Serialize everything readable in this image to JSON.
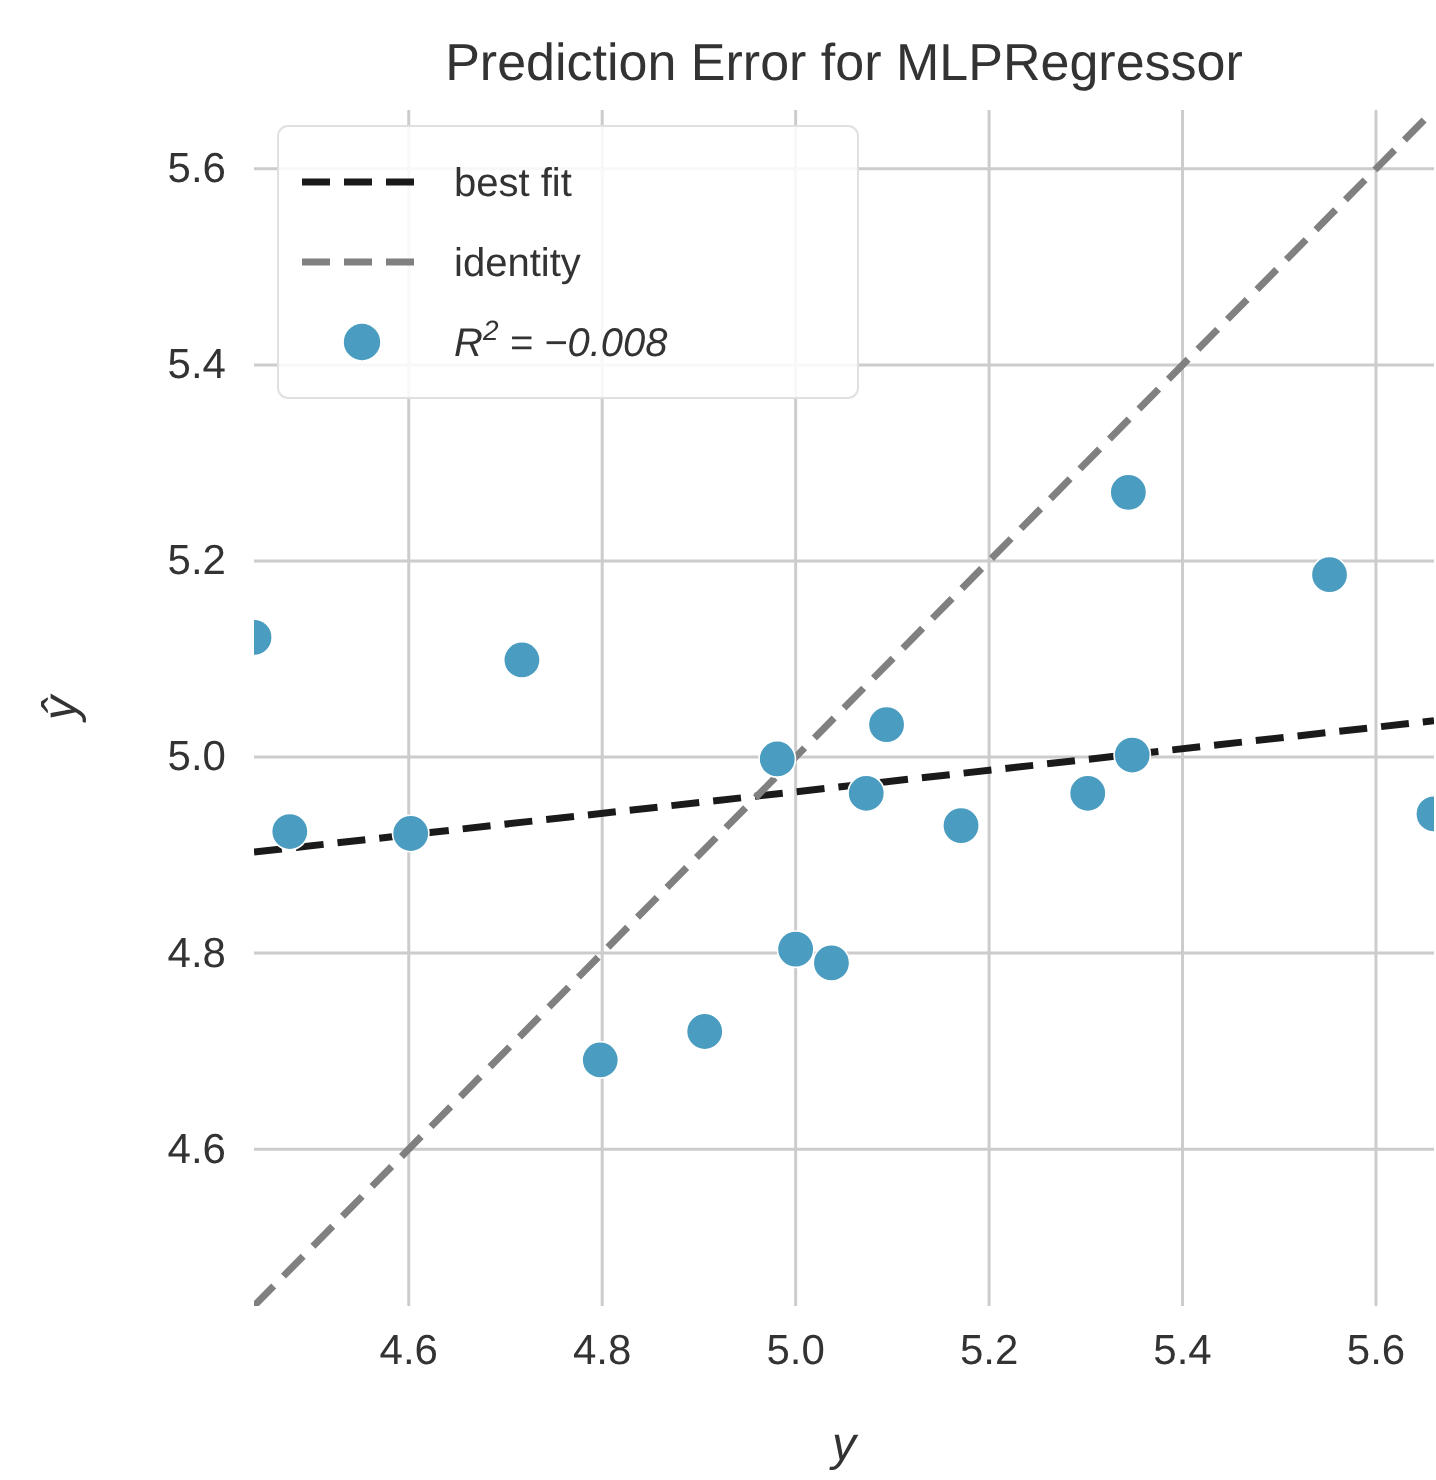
{
  "chart_data": {
    "type": "scatter",
    "title": "Prediction Error for MLPRegressor",
    "xlabel": "y",
    "ylabel": "ŷ",
    "xlim": [
      4.44,
      5.66
    ],
    "ylim": [
      4.44,
      5.66
    ],
    "xticks": [
      4.6,
      4.8,
      {
        "value": 5,
        "label": "5.0"
      },
      5.2,
      5.4,
      5.6
    ],
    "yticks": [
      4.6,
      4.8,
      {
        "value": 5,
        "label": "5.0"
      },
      5.2,
      5.4,
      5.6
    ],
    "grid": true,
    "legend": "top left",
    "series": [
      {
        "name": "best fit",
        "type": "line",
        "color": "#1a1a1a",
        "line_style": "dashed",
        "x": [
          4.44,
          5.66
        ],
        "values": [
          4.903,
          5.037
        ]
      },
      {
        "name": "identity",
        "type": "line",
        "color": "#808080",
        "line_style": "dashed",
        "x": [
          4.44,
          5.66
        ],
        "values": [
          4.44,
          5.66
        ]
      },
      {
        "name": "R$^{2}$ = −0.008",
        "marker": "circle",
        "color": "#4a9cc0",
        "x": [
          4.44,
          4.477,
          4.602,
          4.717,
          4.798,
          4.906,
          4.981,
          5.0,
          5.037,
          5.094,
          5.073,
          5.171,
          5.302,
          5.344,
          5.348,
          5.552,
          5.66
        ],
        "values": [
          5.122,
          4.924,
          4.922,
          5.099,
          4.691,
          4.72,
          4.998,
          4.804,
          4.79,
          5.033,
          4.963,
          4.93,
          4.963,
          5.27,
          5.002,
          5.186,
          4.942
        ]
      }
    ]
  }
}
